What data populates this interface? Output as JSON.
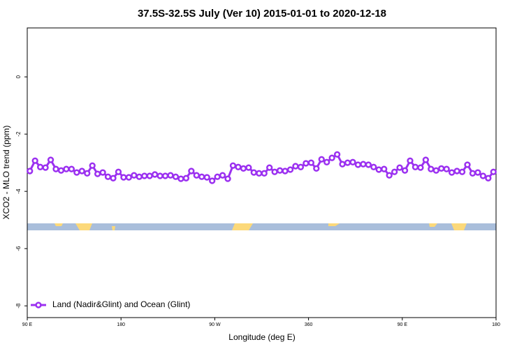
{
  "chart_data": {
    "type": "line",
    "title": "37.5S-32.5S July (Ver 10)   2015-01-01 to 2020-12-18",
    "xlabel": "Longitude (deg E)",
    "ylabel": "XCO2 - MLO trend (ppm)",
    "xlim": [
      90,
      540
    ],
    "xticks": [
      {
        "value": 90,
        "label": "90 E"
      },
      {
        "value": 180,
        "label": "180"
      },
      {
        "value": 270,
        "label": "90 W"
      },
      360,
      {
        "value": 450,
        "label": "90 E"
      },
      {
        "value": 540,
        "label": "180"
      }
    ],
    "ylim": [
      -8.41,
      1.71
    ],
    "yticks": [
      0,
      -2,
      -4,
      -6,
      -8
    ],
    "legend": "bottom-left",
    "x": [
      92.5,
      97.5,
      102.5,
      107.5,
      112.5,
      117.5,
      122.5,
      127.5,
      132.5,
      137.5,
      142.5,
      147.5,
      152.5,
      157.5,
      162.5,
      167.5,
      172.5,
      177.5,
      182.5,
      187.5,
      192.5,
      197.5,
      202.5,
      207.5,
      212.5,
      217.5,
      222.5,
      227.5,
      232.5,
      237.5,
      242.5,
      247.5,
      252.5,
      257.5,
      262.5,
      267.5,
      272.5,
      277.5,
      282.5,
      287.5,
      292.5,
      297.5,
      302.5,
      307.5,
      312.5,
      317.5,
      322.5,
      327.5,
      332.5,
      337.5,
      342.5,
      347.5,
      352.5,
      357.5,
      362.5,
      367.5,
      372.5,
      377.5,
      382.5,
      387.5,
      392.5,
      397.5,
      402.5,
      407.5,
      412.5,
      417.5,
      422.5,
      427.5,
      432.5,
      437.5,
      442.5,
      447.5,
      452.5,
      457.5,
      462.5,
      467.5,
      472.5,
      477.5,
      482.5,
      487.5,
      492.5,
      497.5,
      502.5,
      507.5,
      512.5,
      517.5,
      522.5,
      527.5,
      532.5,
      537.5
    ],
    "series": [
      {
        "name": "Land (Nadir&Glint) and Ocean (Glint)",
        "color": "#9b30f0",
        "values": [
          -3.29,
          -2.93,
          -3.15,
          -3.17,
          -2.9,
          -3.22,
          -3.27,
          -3.22,
          -3.22,
          -3.34,
          -3.29,
          -3.37,
          -3.1,
          -3.39,
          -3.34,
          -3.49,
          -3.54,
          -3.32,
          -3.51,
          -3.51,
          -3.44,
          -3.49,
          -3.46,
          -3.46,
          -3.41,
          -3.46,
          -3.46,
          -3.44,
          -3.49,
          -3.56,
          -3.54,
          -3.29,
          -3.44,
          -3.49,
          -3.51,
          -3.63,
          -3.49,
          -3.44,
          -3.56,
          -3.1,
          -3.15,
          -3.2,
          -3.17,
          -3.34,
          -3.37,
          -3.37,
          -3.17,
          -3.32,
          -3.27,
          -3.29,
          -3.24,
          -3.12,
          -3.15,
          -3.02,
          -3.0,
          -3.2,
          -2.88,
          -2.98,
          -2.83,
          -2.71,
          -3.05,
          -3.0,
          -2.98,
          -3.07,
          -3.05,
          -3.07,
          -3.15,
          -3.24,
          -3.22,
          -3.44,
          -3.32,
          -3.17,
          -3.27,
          -2.93,
          -3.15,
          -3.17,
          -2.9,
          -3.22,
          -3.27,
          -3.2,
          -3.22,
          -3.34,
          -3.29,
          -3.32,
          -3.07,
          -3.37,
          -3.34,
          -3.46,
          -3.54,
          -3.32
        ]
      }
    ]
  }
}
